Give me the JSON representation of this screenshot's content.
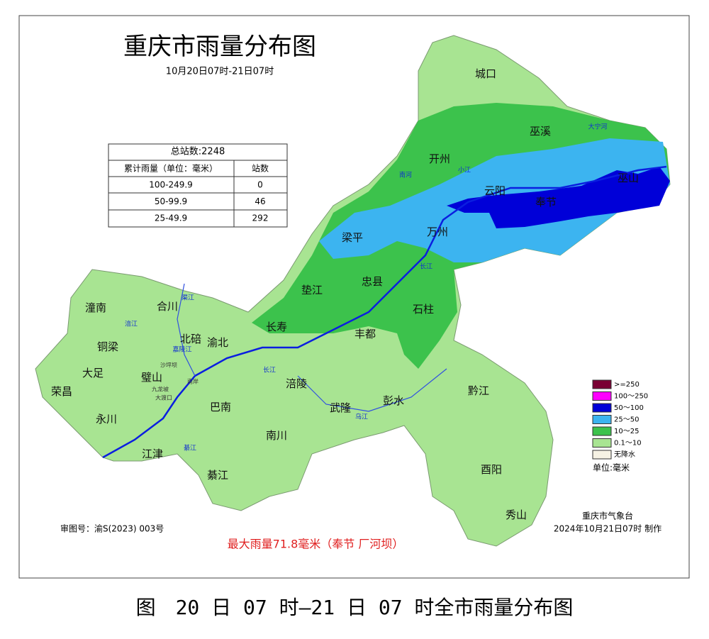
{
  "title": "重庆市雨量分布图",
  "subtitle": "10月20日07时-21日07时",
  "stats_table": {
    "header": "总站数:2248",
    "columns": [
      "累计雨量（单位：毫米）",
      "站数"
    ],
    "rows": [
      [
        "100-249.9",
        0
      ],
      [
        "50-99.9",
        46
      ],
      [
        "25-49.9",
        292
      ]
    ]
  },
  "legend": {
    "items": [
      {
        "label": ">=250",
        "color": "#7a0033"
      },
      {
        "label": "100～250",
        "color": "#ff00ff"
      },
      {
        "label": "50～100",
        "color": "#0000d8"
      },
      {
        "label": "25～50",
        "color": "#3cb4f0"
      },
      {
        "label": "10～25",
        "color": "#3cc24c"
      },
      {
        "label": "0.1～10",
        "color": "#a8e492"
      },
      {
        "label": "无降水",
        "color": "#f6f2e4"
      }
    ],
    "unit": "单位:毫米"
  },
  "regions": [
    "城口",
    "巫溪",
    "开州",
    "云阳",
    "奉节",
    "巫山",
    "梁平",
    "万州",
    "忠县",
    "垫江",
    "石柱",
    "长寿",
    "丰都",
    "潼南",
    "合川",
    "北碚",
    "渝北",
    "铜梁",
    "大足",
    "璧山",
    "涪陵",
    "荣昌",
    "永川",
    "巴南",
    "武隆",
    "彭水",
    "黔江",
    "江津",
    "南川",
    "綦江",
    "酉阳",
    "秀山",
    "沙坪坝",
    "九龙坡",
    "大渡口",
    "南岸"
  ],
  "rivers": [
    "长江",
    "长江",
    "嘉陵江",
    "乌江",
    "涪江",
    "渠江",
    "大宁河",
    "小江",
    "南河",
    "綦江"
  ],
  "review_number": "审图号：渝S(2023) 003号",
  "max_rainfall": "最大雨量71.8毫米（奉节 厂河坝）",
  "agency": "重庆市气象台",
  "issued": "2024年10月21日07时 制作",
  "caption": "图　20 日 07 时—21 日 07 时全市雨量分布图"
}
